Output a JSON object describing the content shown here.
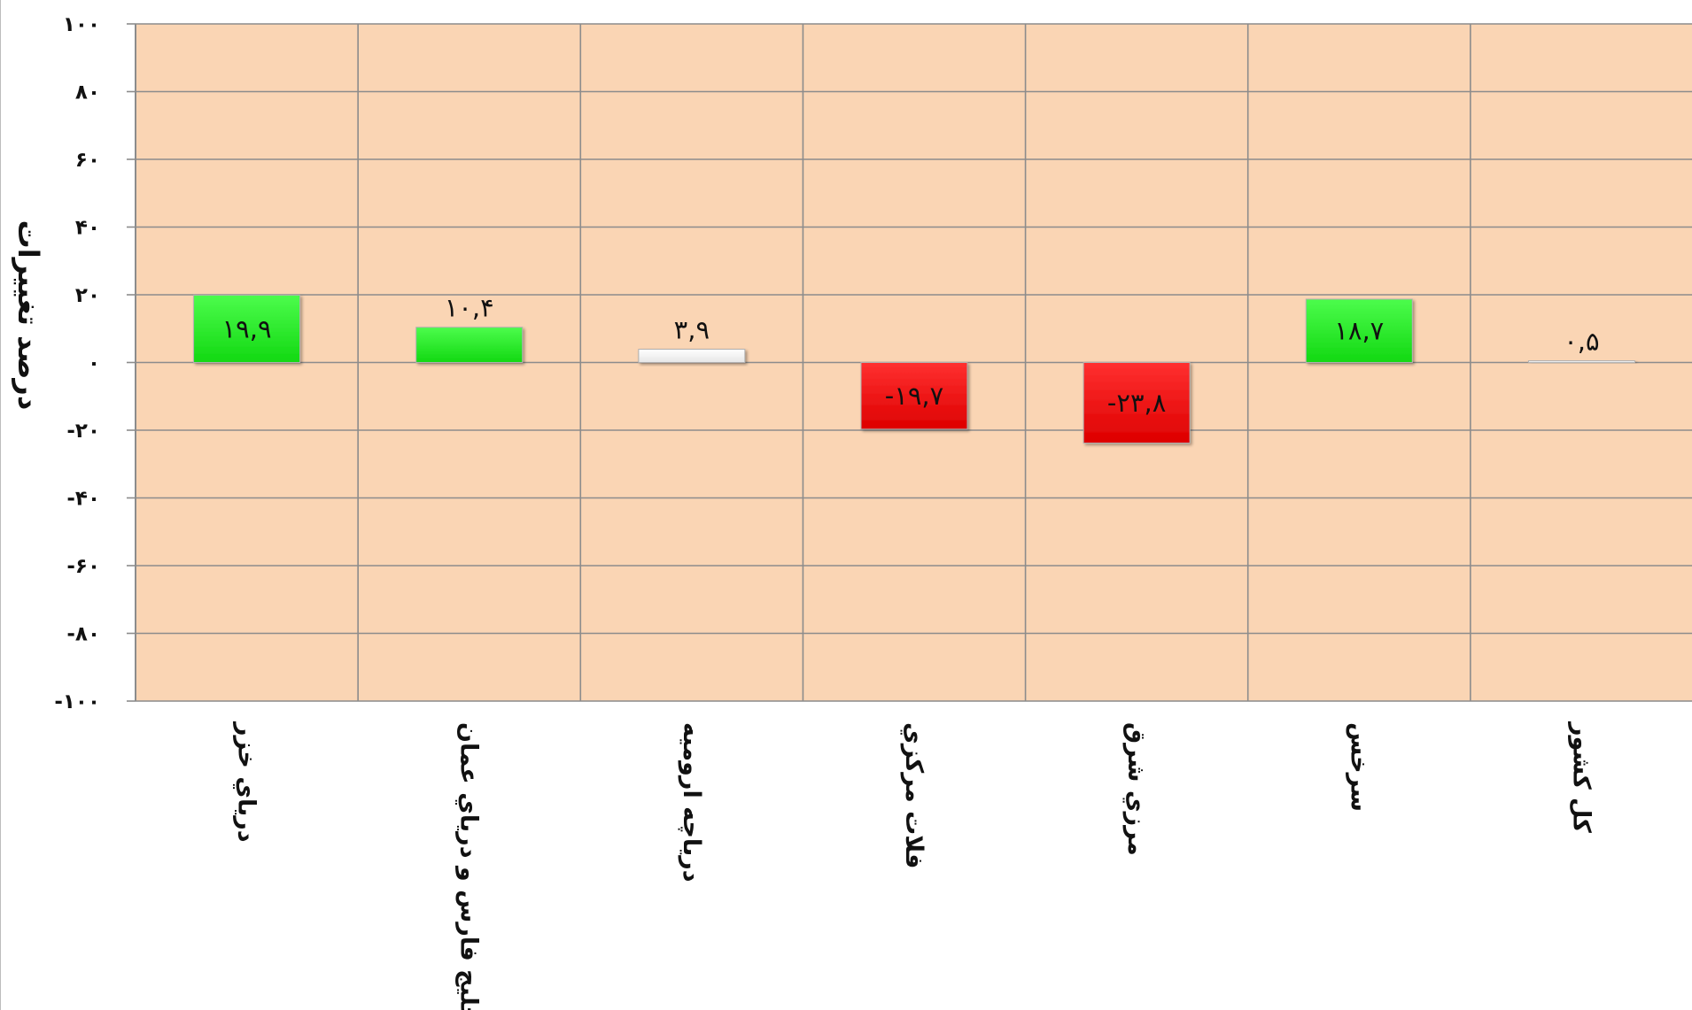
{
  "chart_data": {
    "type": "bar",
    "title": "",
    "xlabel": "",
    "ylabel": "درصد تغييرات",
    "ylim": [
      -100,
      100
    ],
    "y_ticks": [
      100,
      80,
      60,
      40,
      20,
      0,
      -20,
      -40,
      -60,
      -80,
      -100
    ],
    "y_tick_labels": [
      "۱۰۰",
      "۸۰",
      "۶۰",
      "۴۰",
      "۲۰",
      "۰",
      "-۲۰",
      "-۴۰",
      "-۶۰",
      "-۸۰",
      "-۱۰۰"
    ],
    "categories": [
      "درياي خزر",
      "خليج فارس و درياي عمان",
      "درياچه اروميه",
      "فلات مركزي",
      "مرزي شرق",
      "سرخس",
      "كل كشور"
    ],
    "values": [
      19.9,
      10.4,
      3.9,
      -19.7,
      -23.8,
      18.7,
      0.5
    ],
    "data_labels": [
      "۱۹,۹",
      "۱۰,۴",
      "۳,۹",
      "-۱۹,۷",
      "-۲۳,۸",
      "۱۸,۷",
      "۰,۵"
    ],
    "bar_colors": [
      "#22ee22",
      "#22ee22",
      "#ffffff",
      "#ee1111",
      "#ee1111",
      "#22ee22",
      "#ffffff"
    ],
    "plot_background": "#fad5b4",
    "grid": true,
    "grid_color": "#8c8c8c",
    "legend": "none"
  }
}
